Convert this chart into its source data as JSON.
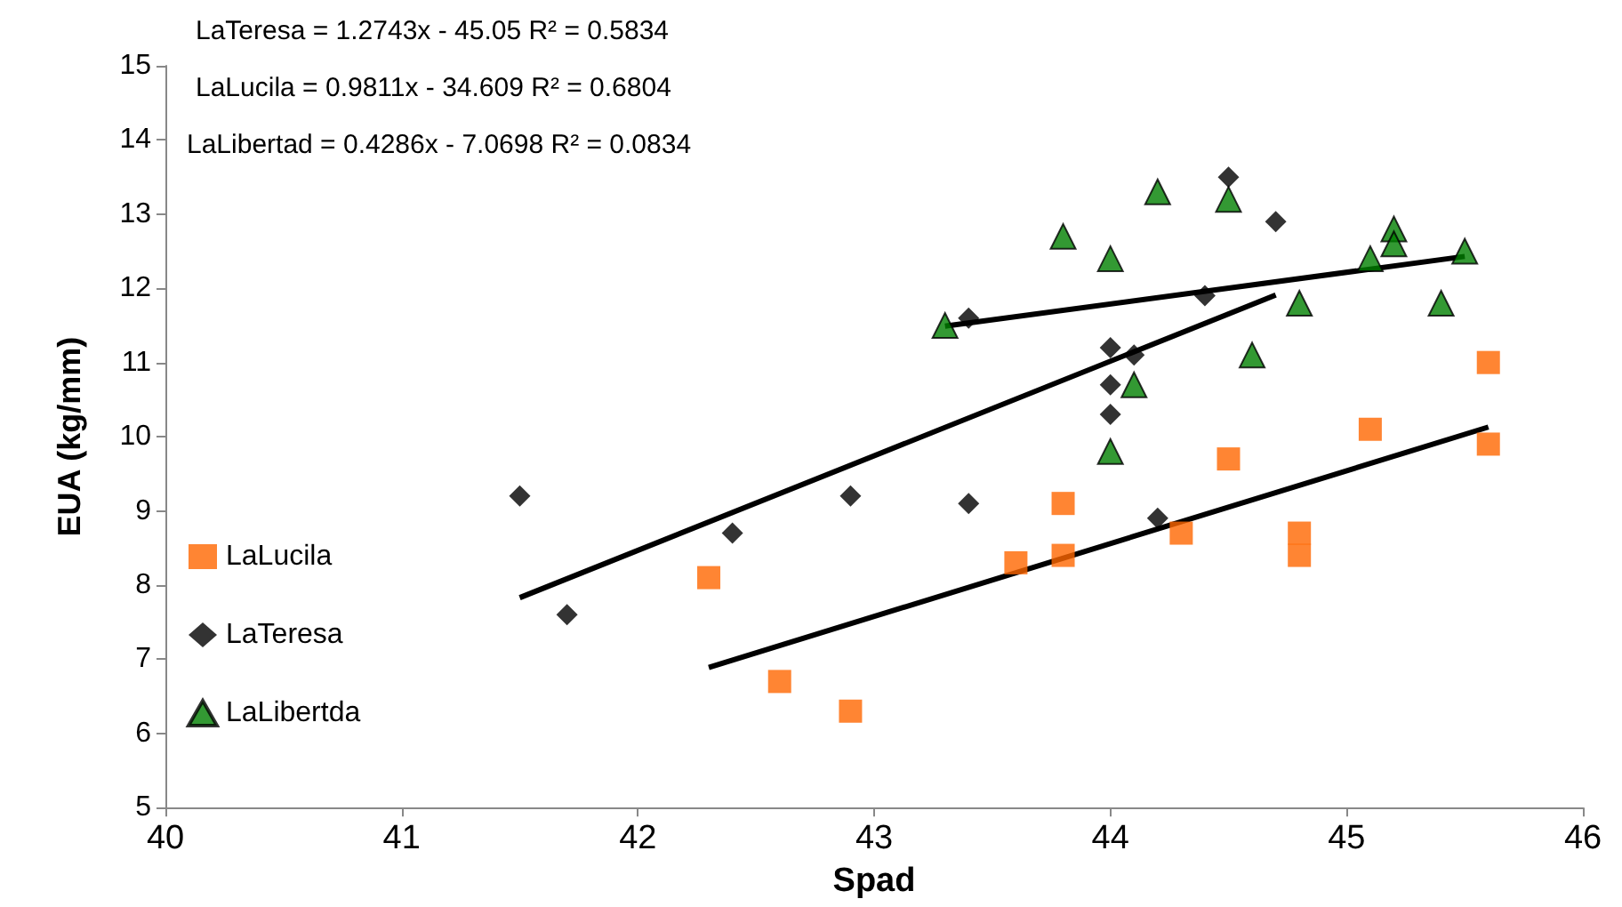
{
  "chart_data": {
    "type": "scatter",
    "xlabel": "Spad",
    "ylabel": "EUA (kg/mm)",
    "annotations": [
      "LaTeresa = 1.2743x - 45.05 R² = 0.5834",
      "LaLucila = 0.9811x - 34.609 R² = 0.6804",
      "LaLibertad = 0.4286x - 7.0698 R² = 0.0834"
    ],
    "xlim": [
      40,
      46
    ],
    "xticks": [
      40,
      41,
      42,
      43,
      44,
      45,
      46
    ],
    "ylim": [
      5,
      15
    ],
    "yticks": [
      5,
      6,
      7,
      8,
      9,
      10,
      11,
      12,
      13,
      14,
      15
    ],
    "grid": false,
    "legend": "left",
    "series": [
      {
        "name": "LaLucila",
        "color": "#ff6600",
        "marker": "square",
        "x": [
          42.3,
          42.6,
          42.9,
          43.6,
          43.8,
          43.8,
          44.3,
          44.5,
          44.8,
          44.8,
          45.1,
          45.6,
          45.6
        ],
        "values": [
          8.1,
          6.7,
          6.3,
          8.3,
          9.1,
          8.4,
          8.7,
          9.7,
          8.7,
          8.4,
          10.1,
          11.0,
          9.9
        ]
      },
      {
        "name": "LaTeresa",
        "color": "#000000",
        "marker": "diamond",
        "x": [
          41.5,
          41.7,
          42.4,
          42.9,
          43.4,
          43.4,
          44.0,
          44.0,
          44.0,
          44.1,
          44.2,
          44.4,
          44.5,
          44.7
        ],
        "values": [
          9.2,
          7.6,
          8.7,
          9.2,
          9.1,
          11.6,
          11.2,
          10.7,
          10.3,
          11.1,
          8.9,
          11.9,
          13.5,
          12.9
        ]
      },
      {
        "name": "LaLibertda",
        "color": "#008000",
        "marker": "triangle",
        "x": [
          43.3,
          43.8,
          44.0,
          44.2,
          44.5,
          45.1,
          45.2,
          45.2,
          45.5,
          44.8,
          45.4,
          44.6,
          44.1,
          44.0
        ],
        "values": [
          11.5,
          12.7,
          12.4,
          13.3,
          13.2,
          12.4,
          12.8,
          12.6,
          12.5,
          11.8,
          11.8,
          11.1,
          10.7,
          9.8
        ]
      },
      {
        "type": "line",
        "color": "#000000",
        "marker": "none",
        "x": [
          41.5,
          44.7
        ],
        "values": [
          7.83,
          11.91
        ]
      },
      {
        "type": "line",
        "color": "#000000",
        "marker": "none",
        "x": [
          42.3,
          45.6
        ],
        "values": [
          6.89,
          10.13
        ]
      },
      {
        "type": "line",
        "color": "#000000",
        "marker": "none",
        "x": [
          43.3,
          45.5
        ],
        "values": [
          11.49,
          12.43
        ]
      }
    ]
  }
}
